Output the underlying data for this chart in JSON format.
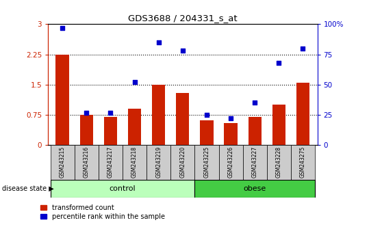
{
  "title": "GDS3688 / 204331_s_at",
  "categories": [
    "GSM243215",
    "GSM243216",
    "GSM243217",
    "GSM243218",
    "GSM243219",
    "GSM243220",
    "GSM243225",
    "GSM243226",
    "GSM243227",
    "GSM243228",
    "GSM243275"
  ],
  "red_values": [
    2.25,
    0.75,
    0.7,
    0.9,
    1.5,
    1.3,
    0.62,
    0.55,
    0.7,
    1.0,
    1.55
  ],
  "blue_values": [
    97,
    27,
    27,
    52,
    85,
    78,
    25,
    22,
    35,
    68,
    80
  ],
  "ylim_left": [
    0,
    3
  ],
  "ylim_right": [
    0,
    100
  ],
  "yticks_left": [
    0,
    0.75,
    1.5,
    2.25,
    3
  ],
  "yticks_right": [
    0,
    25,
    50,
    75,
    100
  ],
  "ytick_labels_left": [
    "0",
    "0.75",
    "1.5",
    "2.25",
    "3"
  ],
  "ytick_labels_right": [
    "0",
    "25",
    "50",
    "75",
    "100%"
  ],
  "hlines": [
    0.75,
    1.5,
    2.25
  ],
  "bar_color": "#CC2200",
  "dot_color": "#0000CC",
  "control_label": "control",
  "obese_label": "obese",
  "disease_state_label": "disease state",
  "legend_red": "transformed count",
  "legend_blue": "percentile rank within the sample",
  "control_color": "#BBFFBB",
  "obese_color": "#44CC44",
  "tick_area_color": "#CCCCCC",
  "background_color": "#FFFFFF",
  "n_control": 6,
  "n_obese": 5
}
